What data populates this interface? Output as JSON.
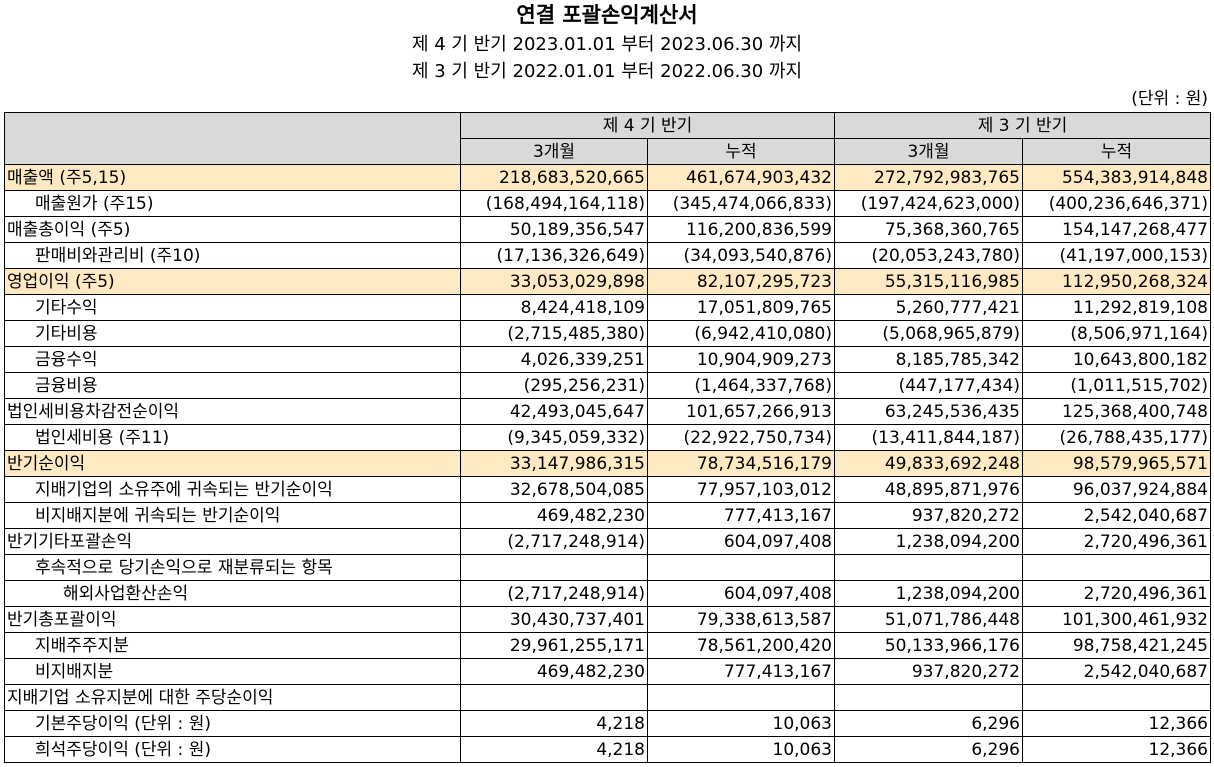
{
  "header": {
    "title": "연결 포괄손익계산서",
    "period_current": "제 4 기 반기 2023.01.01 부터 2023.06.30 까지",
    "period_prior": "제 3 기 반기 2022.01.01 부터 2022.06.30 까지",
    "unit": "(단위 : 원)"
  },
  "table": {
    "groups": [
      "제 4 기 반기",
      "제 3 기 반기"
    ],
    "subheaders": [
      "3개월",
      "누적",
      "3개월",
      "누적"
    ],
    "rows": [
      {
        "label": "매출액 (주5,15)",
        "indent": 0,
        "highlight": true,
        "values": [
          "218,683,520,665",
          "461,674,903,432",
          "272,792,983,765",
          "554,383,914,848"
        ]
      },
      {
        "label": "매출원가 (주15)",
        "indent": 1,
        "highlight": false,
        "values": [
          "(168,494,164,118)",
          "(345,474,066,833)",
          "(197,424,623,000)",
          "(400,236,646,371)"
        ]
      },
      {
        "label": "매출총이익 (주5)",
        "indent": 0,
        "highlight": false,
        "values": [
          "50,189,356,547",
          "116,200,836,599",
          "75,368,360,765",
          "154,147,268,477"
        ]
      },
      {
        "label": "판매비와관리비 (주10)",
        "indent": 1,
        "highlight": false,
        "values": [
          "(17,136,326,649)",
          "(34,093,540,876)",
          "(20,053,243,780)",
          "(41,197,000,153)"
        ]
      },
      {
        "label": "영업이익 (주5)",
        "indent": 0,
        "highlight": true,
        "values": [
          "33,053,029,898",
          "82,107,295,723",
          "55,315,116,985",
          "112,950,268,324"
        ]
      },
      {
        "label": "기타수익",
        "indent": 1,
        "highlight": false,
        "values": [
          "8,424,418,109",
          "17,051,809,765",
          "5,260,777,421",
          "11,292,819,108"
        ]
      },
      {
        "label": "기타비용",
        "indent": 1,
        "highlight": false,
        "values": [
          "(2,715,485,380)",
          "(6,942,410,080)",
          "(5,068,965,879)",
          "(8,506,971,164)"
        ]
      },
      {
        "label": "금융수익",
        "indent": 1,
        "highlight": false,
        "values": [
          "4,026,339,251",
          "10,904,909,273",
          "8,185,785,342",
          "10,643,800,182"
        ]
      },
      {
        "label": "금융비용",
        "indent": 1,
        "highlight": false,
        "values": [
          "(295,256,231)",
          "(1,464,337,768)",
          "(447,177,434)",
          "(1,011,515,702)"
        ]
      },
      {
        "label": "법인세비용차감전순이익",
        "indent": 0,
        "highlight": false,
        "values": [
          "42,493,045,647",
          "101,657,266,913",
          "63,245,536,435",
          "125,368,400,748"
        ]
      },
      {
        "label": "법인세비용 (주11)",
        "indent": 1,
        "highlight": false,
        "values": [
          "(9,345,059,332)",
          "(22,922,750,734)",
          "(13,411,844,187)",
          "(26,788,435,177)"
        ]
      },
      {
        "label": "반기순이익",
        "indent": 0,
        "highlight": true,
        "values": [
          "33,147,986,315",
          "78,734,516,179",
          "49,833,692,248",
          "98,579,965,571"
        ]
      },
      {
        "label": "지배기업의 소유주에 귀속되는 반기순이익",
        "indent": 1,
        "highlight": false,
        "values": [
          "32,678,504,085",
          "77,957,103,012",
          "48,895,871,976",
          "96,037,924,884"
        ]
      },
      {
        "label": "비지배지분에 귀속되는 반기순이익",
        "indent": 1,
        "highlight": false,
        "values": [
          "469,482,230",
          "777,413,167",
          "937,820,272",
          "2,542,040,687"
        ]
      },
      {
        "label": "반기기타포괄손익",
        "indent": 0,
        "highlight": false,
        "values": [
          "(2,717,248,914)",
          "604,097,408",
          "1,238,094,200",
          "2,720,496,361"
        ]
      },
      {
        "label": "후속적으로 당기손익으로 재분류되는 항목",
        "indent": 1,
        "highlight": false,
        "values": [
          "",
          "",
          "",
          ""
        ]
      },
      {
        "label": "해외사업환산손익",
        "indent": 2,
        "highlight": false,
        "values": [
          "(2,717,248,914)",
          "604,097,408",
          "1,238,094,200",
          "2,720,496,361"
        ]
      },
      {
        "label": "반기총포괄이익",
        "indent": 0,
        "highlight": false,
        "values": [
          "30,430,737,401",
          "79,338,613,587",
          "51,071,786,448",
          "101,300,461,932"
        ]
      },
      {
        "label": "지배주주지분",
        "indent": 1,
        "highlight": false,
        "values": [
          "29,961,255,171",
          "78,561,200,420",
          "50,133,966,176",
          "98,758,421,245"
        ]
      },
      {
        "label": "비지배지분",
        "indent": 1,
        "highlight": false,
        "values": [
          "469,482,230",
          "777,413,167",
          "937,820,272",
          "2,542,040,687"
        ]
      },
      {
        "label": "지배기업 소유지분에 대한 주당순이익",
        "indent": 0,
        "highlight": false,
        "values": [
          "",
          "",
          "",
          ""
        ]
      },
      {
        "label": "기본주당이익 (단위 : 원)",
        "indent": 1,
        "highlight": false,
        "values": [
          "4,218",
          "10,063",
          "6,296",
          "12,366"
        ]
      },
      {
        "label": "희석주당이익 (단위 : 원)",
        "indent": 1,
        "highlight": false,
        "values": [
          "4,218",
          "10,063",
          "6,296",
          "12,366"
        ]
      }
    ]
  }
}
